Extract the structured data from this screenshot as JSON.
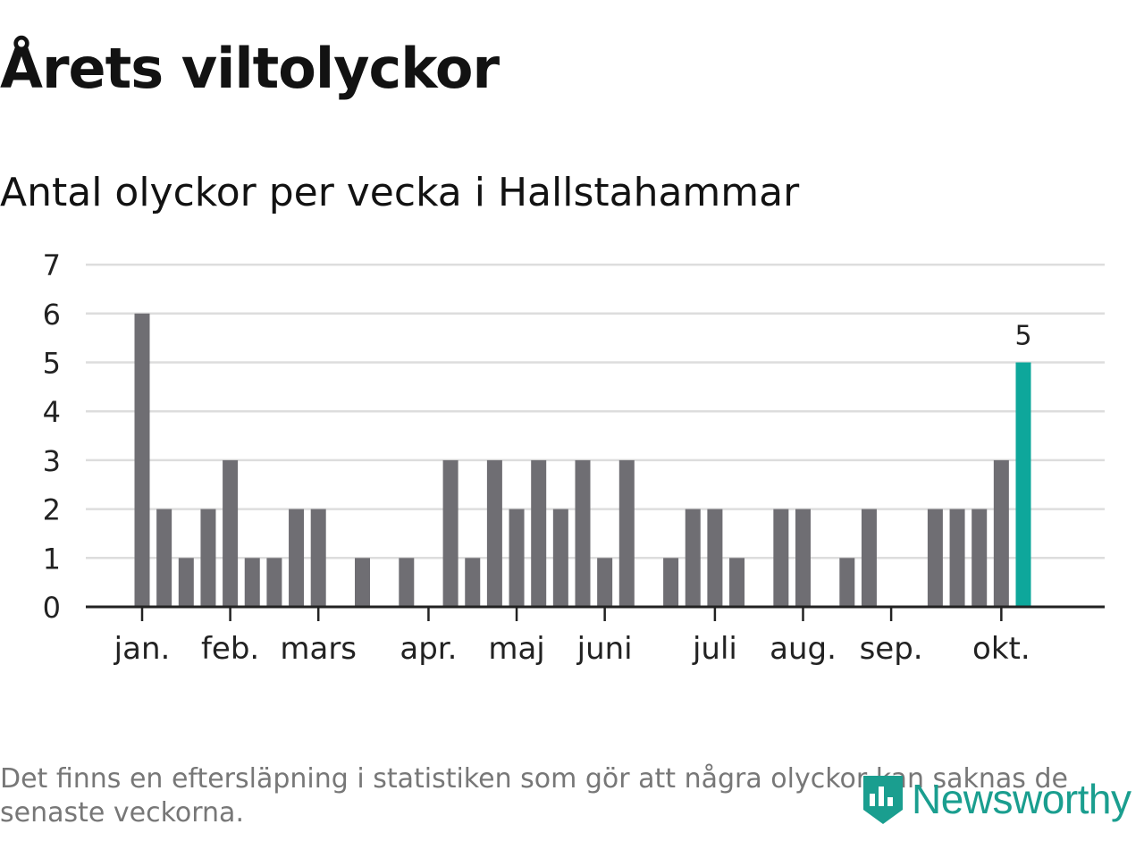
{
  "title": "Årets viltolyckor",
  "subtitle": "Antal olyckor per vecka i Hallstahammar",
  "footnote": "Det finns en eftersläpning i statistiken som gör att några olyckor kan saknas de senaste veckorna.",
  "logo_text": "Newsworthy",
  "colors": {
    "bar": "#6f6e73",
    "highlight": "#0ea79b",
    "grid": "#dddddd",
    "axis": "#222222",
    "logo": "#1a9e8f"
  },
  "chart_data": {
    "type": "bar",
    "title": "Antal olyckor per vecka i Hallstahammar",
    "xlabel": "",
    "ylabel": "",
    "ylim": [
      0,
      7
    ],
    "yticks": [
      0,
      1,
      2,
      3,
      4,
      5,
      6,
      7
    ],
    "weeks": [
      1,
      2,
      3,
      4,
      5,
      6,
      7,
      8,
      9,
      10,
      11,
      12,
      13,
      14,
      15,
      16,
      17,
      18,
      19,
      20,
      21,
      22,
      23,
      24,
      25,
      26,
      27,
      28,
      29,
      30,
      31,
      32,
      33,
      34,
      35,
      36,
      37,
      38,
      39,
      40,
      41
    ],
    "values": [
      6,
      2,
      1,
      2,
      3,
      1,
      1,
      2,
      2,
      0,
      1,
      0,
      1,
      0,
      3,
      1,
      3,
      2,
      3,
      2,
      3,
      1,
      3,
      0,
      1,
      2,
      2,
      1,
      0,
      2,
      2,
      0,
      1,
      2,
      0,
      0,
      2,
      2,
      2,
      3,
      5
    ],
    "highlight_index": 40,
    "highlight_label": "5",
    "month_ticks": [
      {
        "label": "jan.",
        "week": 1
      },
      {
        "label": "feb.",
        "week": 5
      },
      {
        "label": "mars",
        "week": 9
      },
      {
        "label": "apr.",
        "week": 14
      },
      {
        "label": "maj",
        "week": 18
      },
      {
        "label": "juni",
        "week": 22
      },
      {
        "label": "juli",
        "week": 27
      },
      {
        "label": "aug.",
        "week": 31
      },
      {
        "label": "sep.",
        "week": 35
      },
      {
        "label": "okt.",
        "week": 40
      }
    ]
  }
}
